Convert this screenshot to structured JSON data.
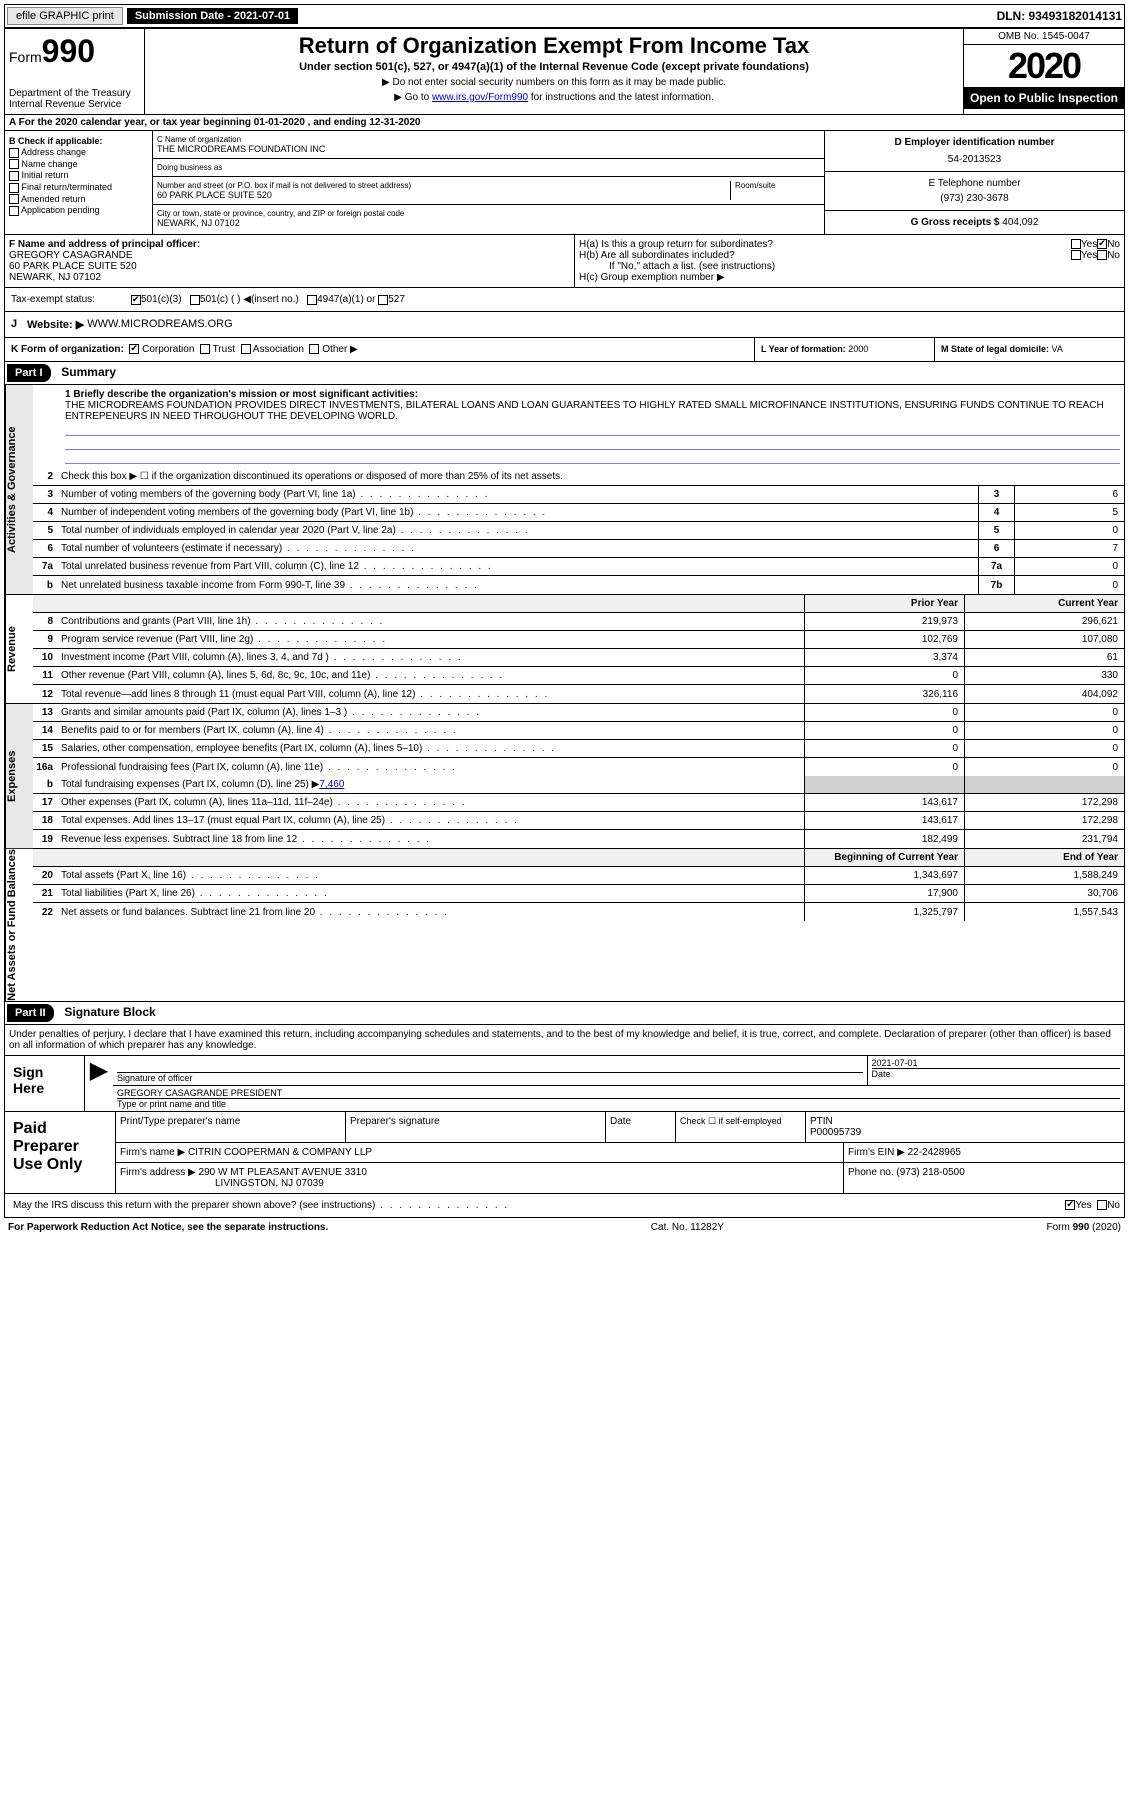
{
  "topbar": {
    "efile": "efile GRAPHIC print",
    "submission": "Submission Date - 2021-07-01",
    "dln": "DLN: 93493182014131"
  },
  "header": {
    "form_prefix": "Form",
    "form_num": "990",
    "dept": "Department of the Treasury\nInternal Revenue Service",
    "title": "Return of Organization Exempt From Income Tax",
    "subtitle": "Under section 501(c), 527, or 4947(a)(1) of the Internal Revenue Code (except private foundations)",
    "instr1": "▶ Do not enter social security numbers on this form as it may be made public.",
    "instr2_pre": "▶ Go to ",
    "instr2_link": "www.irs.gov/Form990",
    "instr2_post": " for instructions and the latest information.",
    "omb": "OMB No. 1545-0047",
    "year": "2020",
    "open": "Open to Public Inspection"
  },
  "section_a": "A For the 2020 calendar year, or tax year beginning 01-01-2020    , and ending 12-31-2020",
  "box_b": {
    "label": "B Check if applicable:",
    "items": [
      "Address change",
      "Name change",
      "Initial return",
      "Final return/terminated",
      "Amended return",
      "Application pending"
    ]
  },
  "box_c": {
    "name_label": "C Name of organization",
    "name": "THE MICRODREAMS FOUNDATION INC",
    "dba_label": "Doing business as",
    "addr_label": "Number and street (or P.O. box if mail is not delivered to street address)",
    "room_label": "Room/suite",
    "addr": "60 PARK PLACE SUITE 520",
    "city_label": "City or town, state or province, country, and ZIP or foreign postal code",
    "city": "NEWARK, NJ  07102"
  },
  "box_d": {
    "label": "D Employer identification number",
    "val": "54-2013523"
  },
  "box_e": {
    "label": "E Telephone number",
    "val": "(973) 230-3678"
  },
  "box_g": {
    "label": "G Gross receipts $",
    "val": "404,092"
  },
  "box_f": {
    "label": "F  Name and address of principal officer:",
    "name": "GREGORY CASAGRANDE",
    "addr1": "60 PARK PLACE SUITE 520",
    "addr2": "NEWARK, NJ  07102"
  },
  "box_h": {
    "ha": "H(a)  Is this a group return for subordinates?",
    "hb": "H(b)  Are all subordinates included?",
    "hb_note": "If \"No,\" attach a list. (see instructions)",
    "hc": "H(c)  Group exemption number ▶",
    "yes": "Yes",
    "no": "No"
  },
  "tax_exempt": {
    "label": "Tax-exempt status:",
    "opt1": "501(c)(3)",
    "opt2": "501(c) (  ) ◀(insert no.)",
    "opt3": "4947(a)(1) or",
    "opt4": "527"
  },
  "box_j": {
    "label": "J",
    "text": "Website: ▶",
    "val": "WWW.MICRODREAMS.ORG"
  },
  "box_k": {
    "label": "K Form of organization:",
    "opts": [
      "Corporation",
      "Trust",
      "Association",
      "Other ▶"
    ]
  },
  "box_l": {
    "label": "L Year of formation:",
    "val": "2000"
  },
  "box_m": {
    "label": "M State of legal domicile:",
    "val": "VA"
  },
  "part1": {
    "label": "Part I",
    "title": "Summary"
  },
  "mission": {
    "label": "1  Briefly describe the organization's mission or most significant activities:",
    "text": "THE MICRODREAMS FOUNDATION PROVIDES DIRECT INVESTMENTS, BILATERAL LOANS AND LOAN GUARANTEES TO HIGHLY RATED SMALL MICROFINANCE INSTITUTIONS, ENSURING FUNDS CONTINUE TO REACH ENTREPENEURS IN NEED THROUGHOUT THE DEVELOPING WORLD."
  },
  "governance": {
    "line2": "Check this box ▶ ☐  if the organization discontinued its operations or disposed of more than 25% of its net assets.",
    "lines": [
      {
        "n": "3",
        "t": "Number of voting members of the governing body (Part VI, line 1a)",
        "box": "3",
        "v": "6"
      },
      {
        "n": "4",
        "t": "Number of independent voting members of the governing body (Part VI, line 1b)",
        "box": "4",
        "v": "5"
      },
      {
        "n": "5",
        "t": "Total number of individuals employed in calendar year 2020 (Part V, line 2a)",
        "box": "5",
        "v": "0"
      },
      {
        "n": "6",
        "t": "Total number of volunteers (estimate if necessary)",
        "box": "6",
        "v": "7"
      },
      {
        "n": "7a",
        "t": "Total unrelated business revenue from Part VIII, column (C), line 12",
        "box": "7a",
        "v": "0"
      },
      {
        "n": "b",
        "t": "Net unrelated business taxable income from Form 990-T, line 39",
        "box": "7b",
        "v": "0"
      }
    ]
  },
  "pycy": {
    "prior": "Prior Year",
    "current": "Current Year"
  },
  "revenue": [
    {
      "n": "8",
      "t": "Contributions and grants (Part VIII, line 1h)",
      "p": "219,973",
      "c": "296,621"
    },
    {
      "n": "9",
      "t": "Program service revenue (Part VIII, line 2g)",
      "p": "102,769",
      "c": "107,080"
    },
    {
      "n": "10",
      "t": "Investment income (Part VIII, column (A), lines 3, 4, and 7d )",
      "p": "3,374",
      "c": "61"
    },
    {
      "n": "11",
      "t": "Other revenue (Part VIII, column (A), lines 5, 6d, 8c, 9c, 10c, and 11e)",
      "p": "0",
      "c": "330"
    },
    {
      "n": "12",
      "t": "Total revenue—add lines 8 through 11 (must equal Part VIII, column (A), line 12)",
      "p": "326,116",
      "c": "404,092"
    }
  ],
  "expenses": [
    {
      "n": "13",
      "t": "Grants and similar amounts paid (Part IX, column (A), lines 1–3 )",
      "p": "0",
      "c": "0"
    },
    {
      "n": "14",
      "t": "Benefits paid to or for members (Part IX, column (A), line 4)",
      "p": "0",
      "c": "0"
    },
    {
      "n": "15",
      "t": "Salaries, other compensation, employee benefits (Part IX, column (A), lines 5–10)",
      "p": "0",
      "c": "0"
    },
    {
      "n": "16a",
      "t": "Professional fundraising fees (Part IX, column (A), line 11e)",
      "p": "0",
      "c": "0"
    }
  ],
  "exp_b": {
    "n": "b",
    "t": "Total fundraising expenses (Part IX, column (D), line 25) ▶",
    "v": "7,460"
  },
  "expenses2": [
    {
      "n": "17",
      "t": "Other expenses (Part IX, column (A), lines 11a–11d, 11f–24e)",
      "p": "143,617",
      "c": "172,298"
    },
    {
      "n": "18",
      "t": "Total expenses. Add lines 13–17 (must equal Part IX, column (A), line 25)",
      "p": "143,617",
      "c": "172,298"
    },
    {
      "n": "19",
      "t": "Revenue less expenses. Subtract line 18 from line 12",
      "p": "182,499",
      "c": "231,794"
    }
  ],
  "netassets_hdr": {
    "begin": "Beginning of Current Year",
    "end": "End of Year"
  },
  "netassets": [
    {
      "n": "20",
      "t": "Total assets (Part X, line 16)",
      "p": "1,343,697",
      "c": "1,588,249"
    },
    {
      "n": "21",
      "t": "Total liabilities (Part X, line 26)",
      "p": "17,900",
      "c": "30,706"
    },
    {
      "n": "22",
      "t": "Net assets or fund balances. Subtract line 21 from line 20",
      "p": "1,325,797",
      "c": "1,557,543"
    }
  ],
  "part2": {
    "label": "Part II",
    "title": "Signature Block"
  },
  "sig": {
    "decl": "Under penalties of perjury, I declare that I have examined this return, including accompanying schedules and statements, and to the best of my knowledge and belief, it is true, correct, and complete. Declaration of preparer (other than officer) is based on all information of which preparer has any knowledge.",
    "sign_here": "Sign Here",
    "sig_officer": "Signature of officer",
    "date": "Date",
    "date_val": "2021-07-01",
    "name_title": "GREGORY CASAGRANDE  PRESIDENT",
    "name_label": "Type or print name and title"
  },
  "paid": {
    "label": "Paid Preparer Use Only",
    "h1": "Print/Type preparer's name",
    "h2": "Preparer's signature",
    "h3": "Date",
    "h4_pre": "Check ☐  if self-employed",
    "h5": "PTIN",
    "ptin": "P00095739",
    "firm_label": "Firm's name    ▶",
    "firm": "CITRIN COOPERMAN & COMPANY LLP",
    "ein_label": "Firm's EIN ▶",
    "ein": "22-2428965",
    "addr_label": "Firm's address ▶",
    "addr1": "290 W MT PLEASANT AVENUE 3310",
    "addr2": "LIVINGSTON, NJ  07039",
    "phone_label": "Phone no.",
    "phone": "(973) 218-0500"
  },
  "discuss": {
    "t": "May the IRS discuss this return with the preparer shown above? (see instructions)",
    "yes": "Yes",
    "no": "No"
  },
  "footer": {
    "left": "For Paperwork Reduction Act Notice, see the separate instructions.",
    "mid": "Cat. No. 11282Y",
    "right": "Form 990 (2020)"
  },
  "vtabs": {
    "ag": "Activities & Governance",
    "rev": "Revenue",
    "exp": "Expenses",
    "na": "Net Assets or Fund Balances"
  }
}
